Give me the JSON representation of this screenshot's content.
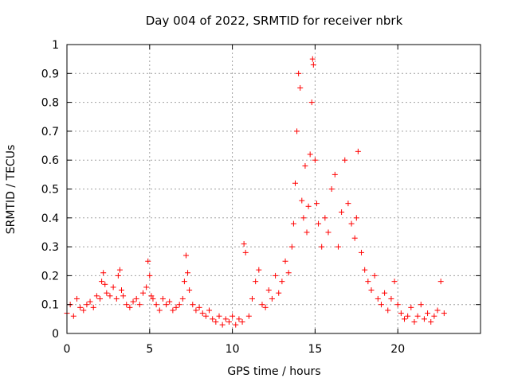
{
  "chart_data": {
    "type": "scatter",
    "title": "Day 004 of 2022, SRMTID for receiver nbrk",
    "xlabel": "GPS time / hours",
    "ylabel": "SRMTID / TECUs",
    "xlim": [
      0,
      25
    ],
    "ylim": [
      0,
      1
    ],
    "xticks": [
      0,
      5,
      10,
      15,
      20
    ],
    "yticks": [
      0,
      0.1,
      0.2,
      0.3,
      0.4,
      0.5,
      0.6,
      0.7,
      0.8,
      0.9,
      1
    ],
    "xtick_labels": [
      "0",
      "5",
      "10",
      "15",
      "20"
    ],
    "ytick_labels": [
      "0",
      "0.1",
      "0.2",
      "0.3",
      "0.4",
      "0.5",
      "0.6",
      "0.7",
      "0.8",
      "0.9",
      "1"
    ],
    "grid": true,
    "marker": "+",
    "color": "#ff0000",
    "series": [
      {
        "name": "SRMTID",
        "x": [
          0.0,
          0.2,
          0.4,
          0.6,
          0.8,
          1.0,
          1.2,
          1.4,
          1.6,
          1.8,
          2.0,
          2.1,
          2.2,
          2.3,
          2.4,
          2.6,
          2.8,
          3.0,
          3.1,
          3.2,
          3.3,
          3.4,
          3.6,
          3.8,
          4.0,
          4.2,
          4.4,
          4.6,
          4.8,
          4.9,
          5.0,
          5.1,
          5.2,
          5.4,
          5.6,
          5.8,
          6.0,
          6.2,
          6.4,
          6.6,
          6.8,
          7.0,
          7.1,
          7.2,
          7.3,
          7.4,
          7.6,
          7.8,
          8.0,
          8.2,
          8.4,
          8.6,
          8.8,
          9.0,
          9.2,
          9.4,
          9.6,
          9.8,
          10.0,
          10.2,
          10.4,
          10.6,
          10.7,
          10.8,
          11.0,
          11.2,
          11.4,
          11.6,
          11.8,
          12.0,
          12.2,
          12.4,
          12.6,
          12.8,
          13.0,
          13.2,
          13.4,
          13.6,
          13.7,
          13.8,
          13.9,
          14.0,
          14.1,
          14.2,
          14.3,
          14.4,
          14.5,
          14.6,
          14.7,
          14.8,
          14.85,
          14.9,
          15.0,
          15.1,
          15.2,
          15.4,
          15.6,
          15.8,
          16.0,
          16.2,
          16.4,
          16.6,
          16.8,
          17.0,
          17.2,
          17.4,
          17.5,
          17.6,
          17.8,
          18.0,
          18.2,
          18.4,
          18.6,
          18.8,
          19.0,
          19.2,
          19.4,
          19.6,
          19.8,
          20.0,
          20.2,
          20.4,
          20.6,
          20.8,
          21.0,
          21.2,
          21.4,
          21.6,
          21.8,
          22.0,
          22.2,
          22.4,
          22.6,
          22.8
        ],
        "y": [
          0.07,
          0.1,
          0.06,
          0.12,
          0.09,
          0.08,
          0.1,
          0.11,
          0.09,
          0.13,
          0.12,
          0.18,
          0.21,
          0.17,
          0.14,
          0.13,
          0.16,
          0.12,
          0.2,
          0.22,
          0.15,
          0.13,
          0.1,
          0.09,
          0.11,
          0.12,
          0.1,
          0.14,
          0.16,
          0.25,
          0.2,
          0.13,
          0.12,
          0.1,
          0.08,
          0.12,
          0.1,
          0.11,
          0.08,
          0.09,
          0.1,
          0.12,
          0.18,
          0.27,
          0.21,
          0.15,
          0.1,
          0.08,
          0.09,
          0.07,
          0.06,
          0.08,
          0.05,
          0.04,
          0.06,
          0.03,
          0.05,
          0.04,
          0.06,
          0.03,
          0.05,
          0.04,
          0.31,
          0.28,
          0.06,
          0.12,
          0.18,
          0.22,
          0.1,
          0.09,
          0.15,
          0.12,
          0.2,
          0.14,
          0.18,
          0.25,
          0.21,
          0.3,
          0.38,
          0.52,
          0.7,
          0.9,
          0.85,
          0.46,
          0.4,
          0.58,
          0.35,
          0.44,
          0.62,
          0.8,
          0.95,
          0.93,
          0.6,
          0.45,
          0.38,
          0.3,
          0.4,
          0.35,
          0.5,
          0.55,
          0.3,
          0.42,
          0.6,
          0.45,
          0.38,
          0.33,
          0.4,
          0.63,
          0.28,
          0.22,
          0.18,
          0.15,
          0.2,
          0.12,
          0.1,
          0.14,
          0.08,
          0.12,
          0.18,
          0.1,
          0.07,
          0.05,
          0.06,
          0.09,
          0.04,
          0.06,
          0.1,
          0.05,
          0.07,
          0.04,
          0.06,
          0.08,
          0.18,
          0.07
        ]
      }
    ]
  }
}
